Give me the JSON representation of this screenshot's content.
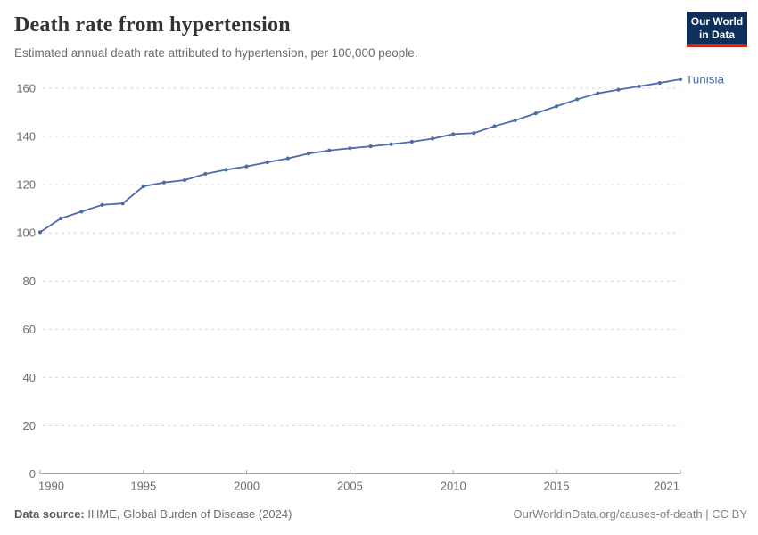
{
  "logo": {
    "line1": "Our World",
    "line2": "in Data",
    "bg_color": "#0e2f5a",
    "accent_color": "#c6281c"
  },
  "chart_data": {
    "type": "line",
    "title": "Death rate from hypertension",
    "subtitle": "Estimated annual death rate attributed to hypertension, per 100,000 people.",
    "x": [
      1990,
      1991,
      1992,
      1993,
      1994,
      1995,
      1996,
      1997,
      1998,
      1999,
      2000,
      2001,
      2002,
      2003,
      2004,
      2005,
      2006,
      2007,
      2008,
      2009,
      2010,
      2011,
      2012,
      2013,
      2014,
      2015,
      2016,
      2017,
      2018,
      2019,
      2020,
      2021
    ],
    "series": [
      {
        "name": "Tunisia",
        "color": "#4c6ba8",
        "values": [
          100.3,
          106.0,
          108.8,
          111.6,
          112.2,
          119.3,
          120.9,
          121.9,
          124.5,
          126.2,
          127.6,
          129.3,
          130.9,
          132.9,
          134.2,
          135.1,
          135.9,
          136.8,
          137.8,
          139.1,
          141.0,
          141.4,
          144.3,
          146.7,
          149.6,
          152.5,
          155.4,
          157.9,
          159.4,
          160.8,
          162.2,
          163.7
        ]
      }
    ],
    "xlabel": "",
    "ylabel": "",
    "ylim": [
      0,
      160
    ],
    "yticks": [
      0,
      20,
      40,
      60,
      80,
      100,
      120,
      140,
      160
    ],
    "xticks": [
      1990,
      1995,
      2000,
      2005,
      2010,
      2015,
      2021
    ],
    "grid": "horizontal-dashed",
    "legend": "end-of-line-label",
    "axis_color": "#a8a8a8",
    "grid_color": "#d6d6d6",
    "tick_text_color": "#6e6e6e"
  },
  "footer": {
    "source_label": "Data source:",
    "source_value": " IHME, Global Burden of Disease (2024)",
    "credit": "OurWorldinData.org/causes-of-death | CC BY"
  }
}
